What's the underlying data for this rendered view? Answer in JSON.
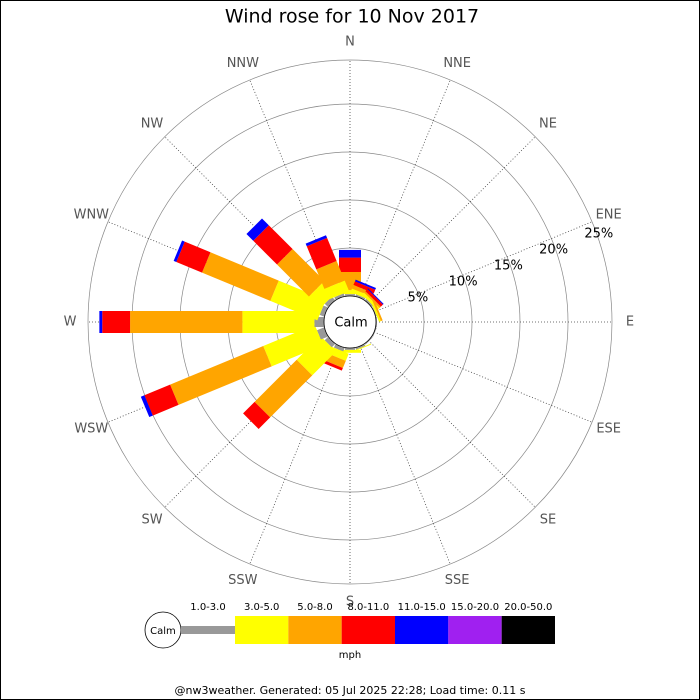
{
  "chart_data": {
    "type": "windrose",
    "title": "Wind rose for 10 Nov 2017",
    "categories": [
      "N",
      "NNE",
      "NE",
      "ENE",
      "E",
      "ESE",
      "SE",
      "SSE",
      "S",
      "SSW",
      "SW",
      "WSW",
      "W",
      "WNW",
      "NW",
      "NNW"
    ],
    "calm_label": "Calm",
    "unit": "mph",
    "ylim": [
      0,
      25
    ],
    "yticks": [
      {
        "value": 5,
        "label": "5%"
      },
      {
        "value": 10,
        "label": "10%"
      },
      {
        "value": 15,
        "label": "15%"
      },
      {
        "value": 20,
        "label": "20%"
      },
      {
        "value": 25,
        "label": "25%"
      }
    ],
    "series": [
      {
        "name": "1.0-3.0",
        "color": "#999999",
        "values": [
          0.2,
          0.2,
          0.2,
          0.1,
          0.1,
          0.1,
          0.1,
          0.2,
          0.2,
          0.4,
          0.5,
          0.8,
          1.0,
          0.5,
          0.5,
          0.3
        ]
      },
      {
        "name": "3.0-5.0",
        "color": "#ffff00",
        "values": [
          0.4,
          0.4,
          0.3,
          0.2,
          0,
          0,
          0,
          0.1,
          0.3,
          0.8,
          3.5,
          5.8,
          7.5,
          5.3,
          1.7,
          1.2
        ]
      },
      {
        "name": "5.0-8.0",
        "color": "#ffa500",
        "values": [
          1.9,
          0.4,
          0.2,
          0.2,
          0,
          0,
          0,
          0,
          0,
          0.8,
          6.2,
          10.5,
          11.7,
          7.7,
          4.7,
          2.2
        ]
      },
      {
        "name": "8.0-11.0",
        "color": "#ff0000",
        "values": [
          1.5,
          0.4,
          0.3,
          0,
          0,
          0,
          0,
          0,
          0,
          0.3,
          1.7,
          2.9,
          2.9,
          2.9,
          3.5,
          2.6
        ]
      },
      {
        "name": "11.0-15.0",
        "color": "#0000ff",
        "values": [
          0.8,
          0.2,
          0.1,
          0,
          0,
          0,
          0,
          0,
          0,
          0,
          0,
          0.4,
          0.3,
          0.3,
          1.0,
          0.3
        ]
      },
      {
        "name": "15.0-20.0",
        "color": "#a020f0",
        "values": [
          0,
          0,
          0,
          0,
          0,
          0,
          0,
          0,
          0,
          0,
          0,
          0,
          0,
          0,
          0,
          0
        ]
      },
      {
        "name": "20.0-50.0",
        "color": "#000000",
        "values": [
          0,
          0,
          0,
          0,
          0,
          0,
          0,
          0,
          0,
          0,
          0,
          0,
          0,
          0,
          0,
          0
        ]
      }
    ],
    "footer": "@nw3weather. Generated: 05 Jul 2025 22:28; Load time: 0.11 s"
  }
}
